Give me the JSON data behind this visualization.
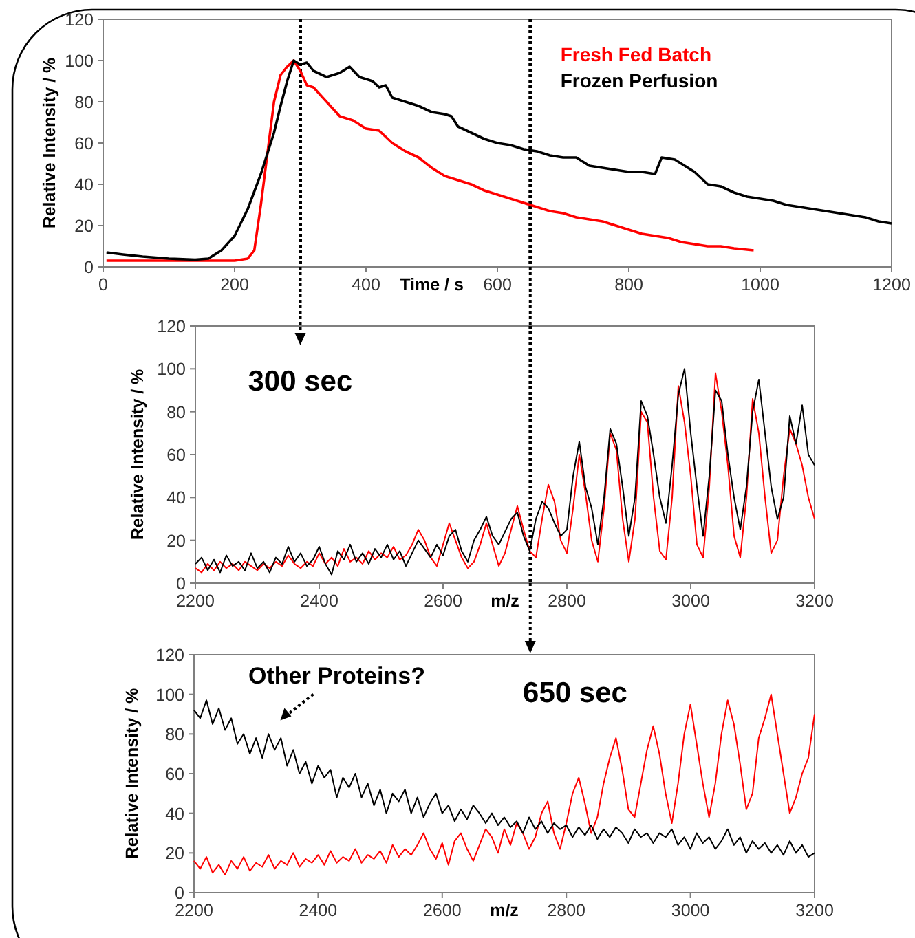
{
  "chart_data": [
    {
      "type": "line",
      "xlabel": "Time / s",
      "ylabel": "Relative Intensity /  %",
      "xlim": [
        0,
        1200
      ],
      "xticks": [
        0,
        200,
        400,
        600,
        800,
        1000,
        1200
      ],
      "ylim": [
        0,
        120
      ],
      "yticks": [
        0,
        20,
        40,
        60,
        80,
        100,
        120
      ],
      "legend": "top right",
      "grid": false,
      "ref_lines": [
        {
          "axis": "x",
          "value": 300,
          "color": "#000000",
          "line_style": "dotted"
        },
        {
          "axis": "x",
          "value": 650,
          "color": "#000000",
          "line_style": "dotted"
        }
      ],
      "series": [
        {
          "name": "Fresh Fed Batch",
          "color": "#ff0000",
          "x": [
            5,
            50,
            100,
            150,
            200,
            220,
            230,
            240,
            250,
            260,
            270,
            280,
            290,
            300,
            310,
            320,
            340,
            360,
            380,
            400,
            420,
            440,
            460,
            480,
            500,
            520,
            540,
            560,
            580,
            600,
            620,
            640,
            660,
            680,
            700,
            720,
            740,
            760,
            780,
            800,
            820,
            840,
            860,
            880,
            900,
            920,
            940,
            960,
            990
          ],
          "values": [
            3,
            3,
            3,
            3,
            3,
            4,
            8,
            30,
            55,
            80,
            93,
            97,
            100,
            95,
            88,
            87,
            80,
            73,
            71,
            67,
            66,
            60,
            56,
            53,
            48,
            44,
            42,
            40,
            37,
            35,
            33,
            31,
            29,
            27,
            26,
            24,
            23,
            22,
            20,
            18,
            16,
            15,
            14,
            12,
            11,
            10,
            10,
            9,
            8
          ]
        },
        {
          "name": "Frozen Perfusion",
          "color": "#000000",
          "x": [
            5,
            30,
            60,
            100,
            140,
            160,
            180,
            200,
            220,
            240,
            250,
            260,
            270,
            280,
            290,
            300,
            310,
            320,
            340,
            360,
            375,
            390,
            410,
            420,
            430,
            440,
            460,
            480,
            500,
            520,
            530,
            540,
            560,
            580,
            600,
            620,
            640,
            660,
            680,
            700,
            720,
            740,
            760,
            780,
            800,
            820,
            840,
            850,
            870,
            890,
            900,
            920,
            940,
            960,
            980,
            1000,
            1020,
            1040,
            1060,
            1080,
            1100,
            1120,
            1140,
            1160,
            1180,
            1200
          ],
          "values": [
            7,
            6,
            5,
            4,
            3.5,
            4,
            8,
            15,
            28,
            45,
            55,
            65,
            78,
            90,
            100,
            98,
            99,
            95,
            92,
            94,
            97,
            92,
            90,
            87,
            88,
            82,
            80,
            78,
            75,
            74,
            73,
            68,
            65,
            62,
            60,
            59,
            57,
            56,
            54,
            53,
            53,
            49,
            48,
            47,
            46,
            46,
            45,
            53,
            52,
            48,
            46,
            40,
            39,
            36,
            34,
            33,
            32,
            30,
            29,
            28,
            27,
            26,
            25,
            24,
            22,
            21
          ]
        }
      ]
    },
    {
      "type": "line",
      "xlabel": "m/z",
      "ylabel": "Relative Intensity / %",
      "xlim": [
        2200,
        3200
      ],
      "xticks": [
        2200,
        2400,
        2600,
        2800,
        3000,
        3200
      ],
      "ylim": [
        0,
        120
      ],
      "yticks": [
        0,
        20,
        40,
        60,
        80,
        100,
        120
      ],
      "grid": false,
      "annotations": [
        "300 sec"
      ],
      "ref_lines": [
        {
          "axis": "x",
          "value": 2741,
          "color": "#000000",
          "line_style": "dotted"
        }
      ],
      "x": [
        2200,
        2210,
        2220,
        2230,
        2240,
        2250,
        2260,
        2270,
        2280,
        2290,
        2300,
        2310,
        2320,
        2330,
        2340,
        2350,
        2360,
        2370,
        2380,
        2390,
        2400,
        2410,
        2420,
        2430,
        2440,
        2450,
        2460,
        2470,
        2480,
        2490,
        2500,
        2510,
        2520,
        2530,
        2540,
        2550,
        2560,
        2570,
        2580,
        2590,
        2600,
        2610,
        2620,
        2630,
        2640,
        2650,
        2660,
        2670,
        2680,
        2690,
        2700,
        2710,
        2720,
        2730,
        2740,
        2750,
        2760,
        2770,
        2780,
        2790,
        2800,
        2810,
        2820,
        2830,
        2840,
        2850,
        2860,
        2870,
        2880,
        2890,
        2900,
        2910,
        2920,
        2930,
        2940,
        2950,
        2960,
        2970,
        2980,
        2990,
        3000,
        3010,
        3020,
        3030,
        3040,
        3050,
        3060,
        3070,
        3080,
        3090,
        3100,
        3110,
        3120,
        3130,
        3140,
        3150,
        3160,
        3170,
        3180,
        3190,
        3200
      ],
      "series": [
        {
          "color": "#ff0000",
          "values": [
            7,
            5,
            9,
            6,
            10,
            7,
            9,
            6,
            10,
            8,
            6,
            9,
            7,
            10,
            8,
            13,
            9,
            7,
            10,
            8,
            14,
            9,
            12,
            8,
            16,
            10,
            12,
            9,
            15,
            11,
            14,
            12,
            17,
            11,
            13,
            18,
            25,
            20,
            12,
            8,
            18,
            28,
            20,
            12,
            7,
            10,
            18,
            28,
            18,
            8,
            14,
            25,
            36,
            25,
            15,
            12,
            30,
            46,
            38,
            20,
            14,
            35,
            60,
            42,
            20,
            10,
            35,
            70,
            62,
            30,
            10,
            30,
            80,
            75,
            40,
            15,
            11,
            40,
            92,
            75,
            50,
            18,
            12,
            45,
            98,
            80,
            55,
            22,
            12,
            40,
            86,
            70,
            40,
            14,
            20,
            50,
            72,
            65,
            55,
            40,
            30
          ]
        },
        {
          "color": "#000000",
          "values": [
            9,
            12,
            6,
            11,
            5,
            13,
            8,
            10,
            6,
            14,
            7,
            10,
            5,
            12,
            9,
            17,
            10,
            14,
            8,
            11,
            17,
            9,
            4,
            15,
            11,
            18,
            10,
            14,
            9,
            16,
            12,
            18,
            11,
            15,
            8,
            14,
            20,
            16,
            12,
            18,
            13,
            22,
            25,
            15,
            10,
            20,
            25,
            31,
            22,
            18,
            24,
            30,
            33,
            22,
            15,
            30,
            38,
            35,
            28,
            22,
            25,
            50,
            66,
            45,
            35,
            18,
            40,
            72,
            65,
            45,
            22,
            40,
            85,
            78,
            60,
            40,
            28,
            55,
            88,
            100,
            70,
            45,
            22,
            50,
            90,
            85,
            60,
            40,
            25,
            45,
            80,
            95,
            70,
            45,
            30,
            40,
            78,
            65,
            83,
            60,
            55
          ]
        }
      ]
    },
    {
      "type": "line",
      "xlabel": "m/z",
      "ylabel": "Relative Intensity / %",
      "xlim": [
        2200,
        3200
      ],
      "xticks": [
        2200,
        2400,
        2600,
        2800,
        3000,
        3200
      ],
      "ylim": [
        0,
        120
      ],
      "yticks": [
        0,
        20,
        40,
        60,
        80,
        100,
        120
      ],
      "grid": false,
      "annotations": [
        "650 sec",
        "Other Proteins?"
      ],
      "x": [
        2200,
        2210,
        2220,
        2230,
        2240,
        2250,
        2260,
        2270,
        2280,
        2290,
        2300,
        2310,
        2320,
        2330,
        2340,
        2350,
        2360,
        2370,
        2380,
        2390,
        2400,
        2410,
        2420,
        2430,
        2440,
        2450,
        2460,
        2470,
        2480,
        2490,
        2500,
        2510,
        2520,
        2530,
        2540,
        2550,
        2560,
        2570,
        2580,
        2590,
        2600,
        2610,
        2620,
        2630,
        2640,
        2650,
        2660,
        2670,
        2680,
        2690,
        2700,
        2710,
        2720,
        2730,
        2740,
        2750,
        2760,
        2770,
        2780,
        2790,
        2800,
        2810,
        2820,
        2830,
        2840,
        2850,
        2860,
        2870,
        2880,
        2890,
        2900,
        2910,
        2920,
        2930,
        2940,
        2950,
        2960,
        2970,
        2980,
        2990,
        3000,
        3010,
        3020,
        3030,
        3040,
        3050,
        3060,
        3070,
        3080,
        3090,
        3100,
        3110,
        3120,
        3130,
        3140,
        3150,
        3160,
        3170,
        3180,
        3190,
        3200
      ],
      "series": [
        {
          "color": "#ff0000",
          "values": [
            16,
            12,
            18,
            10,
            14,
            9,
            16,
            12,
            18,
            11,
            15,
            13,
            19,
            12,
            16,
            14,
            20,
            13,
            17,
            15,
            19,
            14,
            21,
            15,
            18,
            16,
            22,
            15,
            19,
            17,
            21,
            15,
            24,
            18,
            22,
            19,
            24,
            30,
            22,
            17,
            25,
            14,
            26,
            30,
            22,
            16,
            24,
            32,
            28,
            20,
            32,
            24,
            35,
            30,
            22,
            28,
            40,
            46,
            30,
            22,
            35,
            50,
            58,
            45,
            30,
            38,
            55,
            68,
            78,
            62,
            42,
            38,
            55,
            72,
            84,
            70,
            50,
            35,
            55,
            80,
            95,
            75,
            55,
            38,
            55,
            80,
            97,
            85,
            65,
            42,
            50,
            78,
            88,
            100,
            80,
            60,
            40,
            48,
            60,
            68,
            90
          ]
        },
        {
          "color": "#000000",
          "values": [
            92,
            88,
            97,
            85,
            93,
            82,
            88,
            75,
            80,
            70,
            78,
            68,
            80,
            72,
            78,
            64,
            72,
            60,
            66,
            55,
            64,
            58,
            62,
            48,
            58,
            53,
            60,
            48,
            55,
            44,
            52,
            40,
            50,
            46,
            52,
            40,
            48,
            38,
            45,
            50,
            40,
            44,
            36,
            42,
            37,
            44,
            40,
            35,
            40,
            34,
            38,
            33,
            36,
            30,
            38,
            32,
            36,
            30,
            35,
            32,
            34,
            28,
            33,
            29,
            34,
            27,
            32,
            28,
            33,
            30,
            25,
            32,
            28,
            30,
            25,
            30,
            28,
            32,
            24,
            28,
            22,
            30,
            25,
            28,
            22,
            26,
            32,
            24,
            28,
            20,
            26,
            22,
            25,
            20,
            24,
            19,
            26,
            20,
            24,
            18,
            20
          ]
        }
      ]
    }
  ]
}
